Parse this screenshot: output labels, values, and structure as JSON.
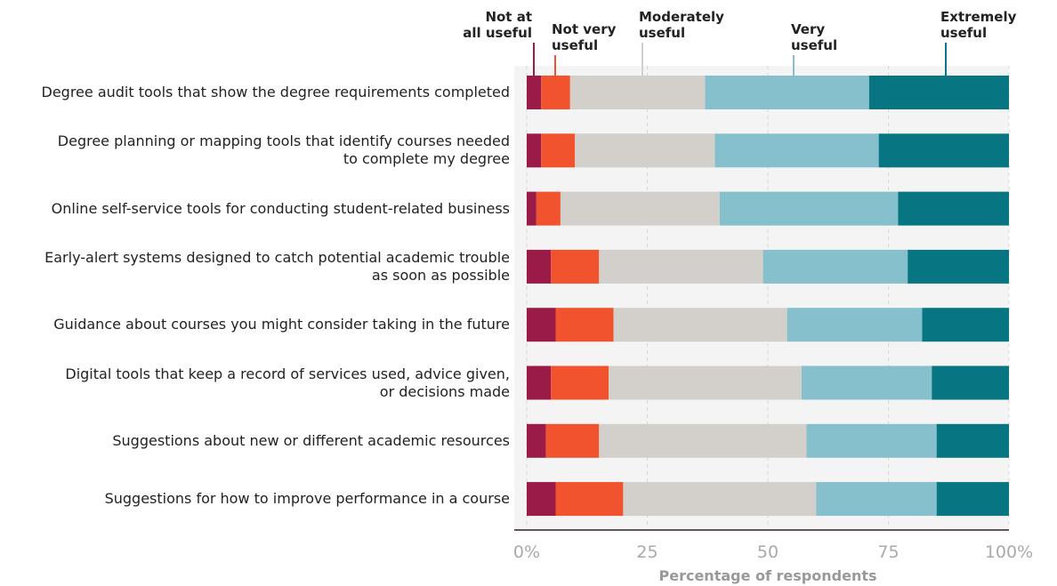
{
  "chart_data": {
    "type": "stacked-bar-horizontal",
    "x_label": "Percentage of respondents",
    "categories": [
      "Degree audit tools that show the degree requirements completed",
      "Degree planning or mapping tools that identify courses needed\nto complete my degree",
      "Online self-service tools for conducting student-related business",
      "Early-alert systems designed to catch potential academic trouble\nas soon as possible",
      "Guidance about courses you might consider taking in the future",
      "Digital tools that keep a record of services used, advice given,\nor decisions made",
      "Suggestions about new or different academic resources",
      "Suggestions for how to improve performance in a course"
    ],
    "series": [
      {
        "name": "Not at\nall useful",
        "color": "#9b1b48",
        "values": [
          3,
          3,
          2,
          5,
          6,
          5,
          4,
          6
        ]
      },
      {
        "name": "Not very\nuseful",
        "color": "#f0532e",
        "values": [
          6,
          7,
          5,
          10,
          12,
          12,
          11,
          14
        ]
      },
      {
        "name": "Moderately\nuseful",
        "color": "#d3d0cc",
        "values": [
          28,
          29,
          33,
          34,
          36,
          40,
          43,
          40
        ]
      },
      {
        "name": "Very\nuseful",
        "color": "#86c0cc",
        "values": [
          34,
          34,
          37,
          30,
          28,
          27,
          27,
          25
        ]
      },
      {
        "name": "Extremely\nuseful",
        "color": "#087682",
        "values": [
          29,
          27,
          23,
          21,
          18,
          16,
          15,
          15
        ]
      }
    ],
    "xlim": [
      0,
      100
    ],
    "xticks": [
      {
        "value": 0,
        "label": "0%"
      },
      25,
      50,
      75,
      {
        "value": 100,
        "label": "100%"
      }
    ],
    "grid": true
  }
}
